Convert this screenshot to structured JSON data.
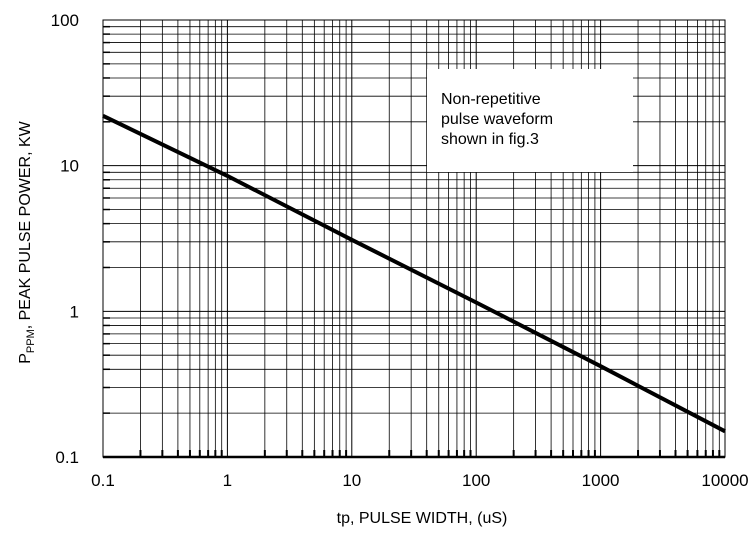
{
  "chart_data": {
    "type": "line",
    "x_scale": "log",
    "y_scale": "log",
    "xlim": [
      0.1,
      10000
    ],
    "ylim": [
      0.1,
      100
    ],
    "x_ticks": [
      "0.1",
      "1",
      "10",
      "100",
      "1000",
      "10000"
    ],
    "y_ticks": [
      "0.1",
      "1",
      "10",
      "100"
    ],
    "x_tick_values": [
      0.1,
      1,
      10,
      100,
      1000,
      10000
    ],
    "y_tick_values": [
      0.1,
      1,
      10,
      100
    ],
    "xlabel": "tp, PULSE WIDTH, (uS)",
    "ylabel_main": "P",
    "ylabel_sub": "PPM",
    "ylabel_rest": ", PEAK PULSE POWER, KW",
    "grid": true,
    "series": [
      {
        "x": [
          0.1,
          1,
          10,
          100,
          1000,
          10000
        ],
        "y": [
          22,
          8.5,
          3.1,
          1.15,
          0.42,
          0.15
        ]
      }
    ],
    "annotation": {
      "lines": [
        "Non-repetitive",
        "pulse waveform",
        "shown in fig.3"
      ],
      "placement": "upper-right"
    }
  }
}
